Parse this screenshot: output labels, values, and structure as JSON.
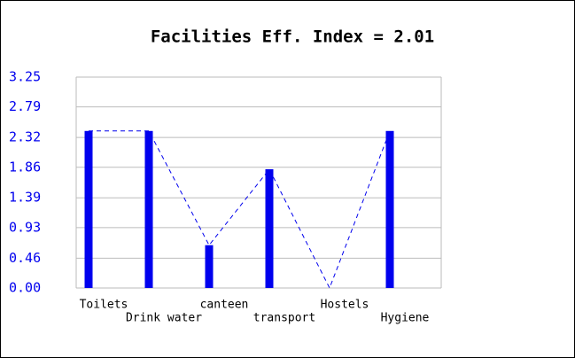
{
  "chart_data": {
    "type": "bar",
    "title": "Facilities Eff. Index = 2.01",
    "categories": [
      "Toilets",
      "Drink water",
      "canteen",
      "transport",
      "Hostels",
      "Hygiene"
    ],
    "values": [
      2.42,
      2.42,
      0.66,
      1.83,
      0,
      2.42
    ],
    "color": "#0000ee",
    "ylim": [
      0,
      3.25
    ],
    "yticks": [
      {
        "value": 0,
        "label": "0.00"
      },
      {
        "value": 0.46,
        "label": "0.46"
      },
      {
        "value": 0.93,
        "label": "0.93"
      },
      {
        "value": 1.39,
        "label": "1.39"
      },
      {
        "value": 1.86,
        "label": "1.86"
      },
      {
        "value": 2.32,
        "label": "2.32"
      },
      {
        "value": 2.79,
        "label": "2.79"
      },
      {
        "value": 3.25,
        "label": "3.25"
      }
    ],
    "grid": true
  }
}
